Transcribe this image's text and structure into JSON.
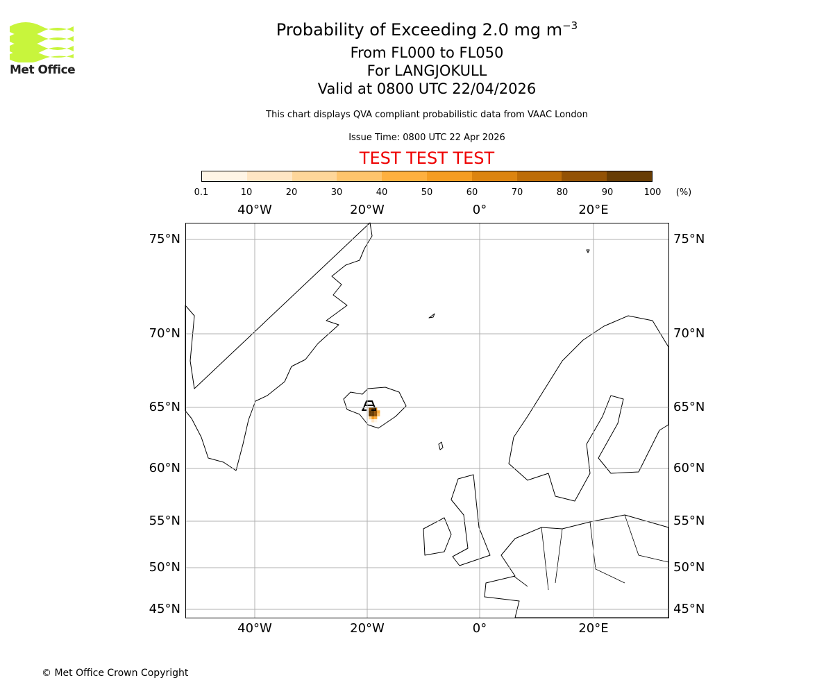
{
  "logo": {
    "text": "Met Office",
    "color": "#c8f53c"
  },
  "title": {
    "line1": "Probability of Exceeding 2.0 mg m",
    "line1_sup": "−3",
    "line2": "From FL000 to FL050",
    "line3": "For LANGJOKULL",
    "line4": "Valid at 0800 UTC 22/04/2026"
  },
  "subtitle": "This chart displays QVA compliant probabilistic data from VAAC London",
  "issue_time": "Issue Time: 0800 UTC 22 Apr 2026",
  "test_banner": {
    "text": "TEST TEST TEST",
    "color": "#ff0000"
  },
  "colorbar": {
    "ticks": [
      "0.1",
      "10",
      "20",
      "30",
      "40",
      "50",
      "60",
      "70",
      "80",
      "90",
      "100"
    ],
    "unit": "(%)",
    "colors": [
      "#fff5e6",
      "#ffe6c4",
      "#fed69a",
      "#fec46c",
      "#feb03f",
      "#f59d22",
      "#dc8410",
      "#bd6c07",
      "#935205",
      "#673c04"
    ]
  },
  "map": {
    "lon_labels": [
      "40°W",
      "20°W",
      "0°",
      "20°E"
    ],
    "lat_labels": [
      "75°N",
      "70°N",
      "65°N",
      "60°N",
      "55°N",
      "50°N",
      "45°N"
    ],
    "plume_cells": [
      {
        "lon": -19.5,
        "lat": 64.9,
        "value": 85
      },
      {
        "lon": -19.0,
        "lat": 64.9,
        "value": 90
      },
      {
        "lon": -18.5,
        "lat": 64.9,
        "value": 60
      },
      {
        "lon": -19.5,
        "lat": 64.7,
        "value": 95
      },
      {
        "lon": -19.0,
        "lat": 64.7,
        "value": 95
      },
      {
        "lon": -18.5,
        "lat": 64.7,
        "value": 80
      },
      {
        "lon": -18.0,
        "lat": 64.7,
        "value": 45
      },
      {
        "lon": -19.5,
        "lat": 64.5,
        "value": 90
      },
      {
        "lon": -19.0,
        "lat": 64.5,
        "value": 95
      },
      {
        "lon": -18.5,
        "lat": 64.5,
        "value": 85
      },
      {
        "lon": -18.0,
        "lat": 64.5,
        "value": 35
      },
      {
        "lon": -19.0,
        "lat": 64.3,
        "value": 55
      },
      {
        "lon": -18.5,
        "lat": 64.3,
        "value": 40
      },
      {
        "lon": -19.5,
        "lat": 64.3,
        "value": 25
      },
      {
        "lon": -19.0,
        "lat": 64.1,
        "value": 15
      },
      {
        "lon": -18.5,
        "lat": 64.1,
        "value": 5
      }
    ]
  },
  "footer": "© Met Office Crown Copyright"
}
